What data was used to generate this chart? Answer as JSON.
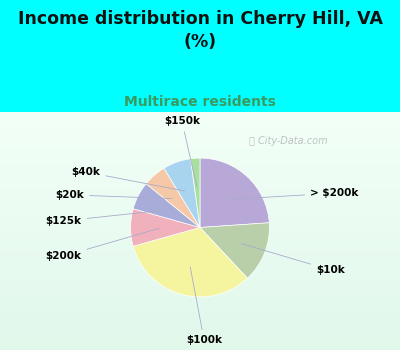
{
  "title": "Income distribution in Cherry Hill, VA\n(%)",
  "subtitle": "Multirace residents",
  "title_color": "#111111",
  "subtitle_color": "#3a9a60",
  "bg_cyan": "#00ffff",
  "bg_chart": "#e8f5ee",
  "watermark": "City-Data.com",
  "slices": [
    {
      "label": "> $200k",
      "value": 22,
      "color": "#b8a8d8"
    },
    {
      "label": "$10k",
      "value": 13,
      "color": "#b8cfaa"
    },
    {
      "label": "$100k",
      "value": 30,
      "color": "#f5f5a0"
    },
    {
      "label": "$200k",
      "value": 8,
      "color": "#f0b0bc"
    },
    {
      "label": "$125k",
      "value": 6,
      "color": "#a8acd8"
    },
    {
      "label": "$20k",
      "value": 5,
      "color": "#f5c8a8"
    },
    {
      "label": "$40k",
      "value": 6,
      "color": "#a8d4f0"
    },
    {
      "label": "$150k",
      "value": 2,
      "color": "#a8e0a0"
    }
  ],
  "label_fontsize": 7.5,
  "title_fontsize": 12.5,
  "subtitle_fontsize": 10
}
